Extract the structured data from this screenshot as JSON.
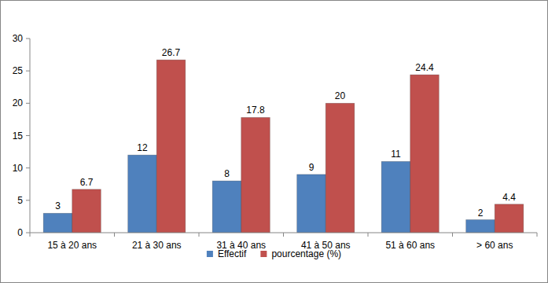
{
  "chart_data": {
    "type": "bar",
    "categories": [
      "15 à 20 ans",
      "21 à 30 ans",
      "31 à 40 ans",
      "41 à 50 ans",
      "51 à 60 ans",
      "> 60 ans"
    ],
    "series": [
      {
        "name": "Effectif",
        "color": "#4f81bd",
        "values": [
          3,
          12,
          8,
          9,
          11,
          2
        ]
      },
      {
        "name": "pourcentage (%)",
        "color": "#c0504d",
        "values": [
          6.7,
          26.7,
          17.8,
          20,
          24.4,
          4.4
        ]
      }
    ],
    "ylim": [
      0,
      30
    ],
    "yticks": [
      0,
      5,
      10,
      15,
      20,
      25,
      30
    ],
    "grid": false,
    "legend": "bottom",
    "data_labels": true
  }
}
